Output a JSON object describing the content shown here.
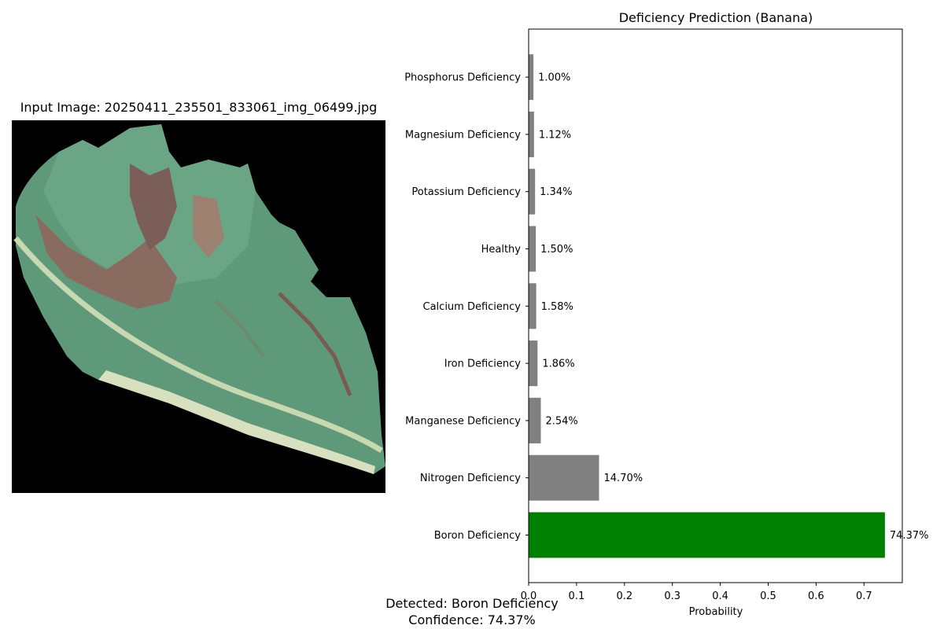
{
  "image_panel": {
    "title": "Input Image: 20250411_235501_833061_img_06499.jpg"
  },
  "summary": {
    "detected": "Detected: Boron Deficiency",
    "confidence": "Confidence: 74.37%"
  },
  "colors": {
    "highlight": "#008000",
    "default_bar": "#808080",
    "image_background": "#000000",
    "leaf_green": "#5e9a7a",
    "leaf_damage": "#8a6b60"
  },
  "chart_data": {
    "type": "bar",
    "orientation": "horizontal",
    "title": "Deficiency Prediction (Banana)",
    "xlabel": "Probability",
    "ylabel": "",
    "xlim": [
      0,
      0.78
    ],
    "xticks": [
      0,
      0.1,
      0.2,
      0.3,
      0.4,
      0.5,
      0.6,
      0.7
    ],
    "xtick_labels": [
      "0.0",
      "0.1",
      "0.2",
      "0.3",
      "0.4",
      "0.5",
      "0.6",
      "0.7"
    ],
    "grid": false,
    "categories": [
      "Boron Deficiency",
      "Nitrogen Deficiency",
      "Manganese Deficiency",
      "Iron Deficiency",
      "Calcium Deficiency",
      "Healthy",
      "Potassium Deficiency",
      "Magnesium Deficiency",
      "Phosphorus Deficiency"
    ],
    "values": [
      0.7437,
      0.147,
      0.0254,
      0.0186,
      0.0158,
      0.015,
      0.0134,
      0.0112,
      0.01
    ],
    "value_labels": [
      "74.37%",
      "14.70%",
      "2.54%",
      "1.86%",
      "1.58%",
      "1.50%",
      "1.34%",
      "1.12%",
      "1.00%"
    ],
    "highlight_index": 0
  }
}
